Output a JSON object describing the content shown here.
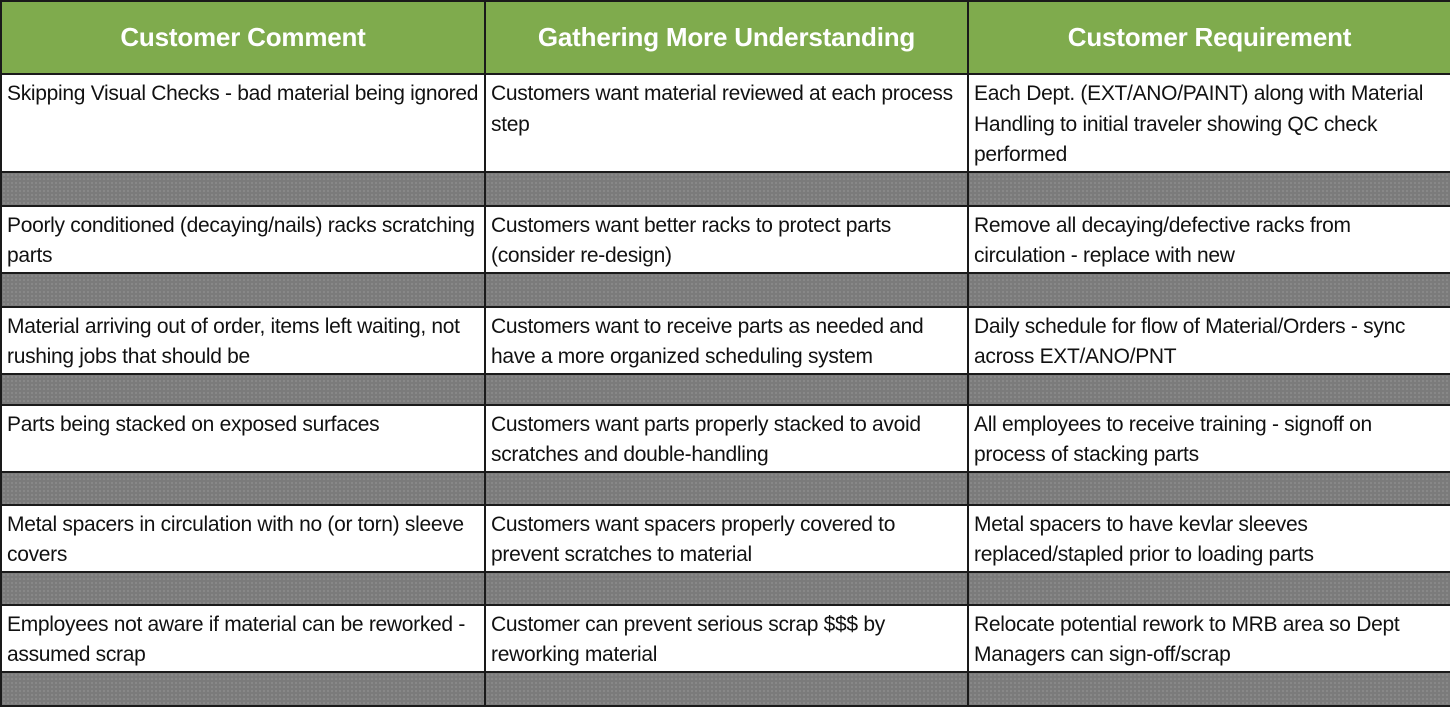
{
  "headers": [
    "Customer Comment",
    "Gathering More Understanding",
    "Customer Requirement"
  ],
  "rows": [
    {
      "comment": "Skipping Visual Checks - bad material being ignored",
      "understanding": "Customers want material reviewed at each process step",
      "requirement": "Each Dept. (EXT/ANO/PAINT) along with Material Handling to initial traveler showing QC check performed"
    },
    {
      "comment": "Poorly conditioned (decaying/nails) racks scratching parts",
      "understanding": "Customers want better racks to protect parts (consider re-design)",
      "requirement": "Remove all decaying/defective racks from circulation - replace with new"
    },
    {
      "comment": "Material arriving out of order, items left waiting, not rushing jobs that should be",
      "understanding": "Customers want to receive parts as needed and have a more organized scheduling system",
      "requirement": "Daily schedule for flow of Material/Orders - sync across EXT/ANO/PNT"
    },
    {
      "comment": "Parts being stacked on exposed surfaces",
      "understanding": "Customers want parts properly stacked to avoid scratches and double-handling",
      "requirement": "All employees to receive training - signoff on process of stacking parts"
    },
    {
      "comment": "Metal spacers in circulation with no (or torn) sleeve covers",
      "understanding": "Customers want spacers properly covered to prevent scratches to material",
      "requirement": "Metal spacers to have kevlar sleeves replaced/stapled prior to loading parts"
    },
    {
      "comment": "Employees not aware if material can be reworked - assumed scrap",
      "understanding": "Customer can prevent serious scrap $$$ by reworking material",
      "requirement": "Relocate potential rework to MRB area so Dept Managers can sign-off/scrap"
    }
  ]
}
